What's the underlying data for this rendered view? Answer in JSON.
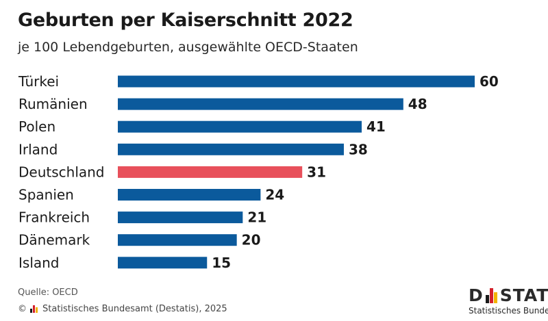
{
  "header": {
    "title": "Geburten per Kaiserschnitt 2022",
    "subtitle": "je 100 Lebendgeburten, ausgewählte OECD-Staaten"
  },
  "chart_data": {
    "type": "bar",
    "orientation": "horizontal",
    "title": "Geburten per Kaiserschnitt 2022",
    "subtitle": "je 100 Lebendgeburten, ausgewählte OECD-Staaten",
    "xlabel": "",
    "ylabel": "",
    "categories": [
      "Türkei",
      "Rumänien",
      "Polen",
      "Irland",
      "Deutschland",
      "Spanien",
      "Frankreich",
      "Dänemark",
      "Island"
    ],
    "values": [
      60,
      48,
      41,
      38,
      31,
      24,
      21,
      20,
      15
    ],
    "highlight": "Deutschland",
    "xlim": [
      0,
      60
    ],
    "grid": false,
    "colors": {
      "default": "#0b5a9c",
      "highlight": "#e8505b"
    }
  },
  "footer": {
    "source": "Quelle: OECD",
    "copyright_symbol": "©",
    "copyright": "Statistisches Bundesamt (Destatis), 2025",
    "logo_left": "D",
    "logo_right": "STATI",
    "logo_sub": "Statistisches Bundes"
  },
  "colors": {
    "flag_black": "#1a1a1a",
    "flag_red": "#d4202a",
    "flag_gold": "#f2b300"
  }
}
